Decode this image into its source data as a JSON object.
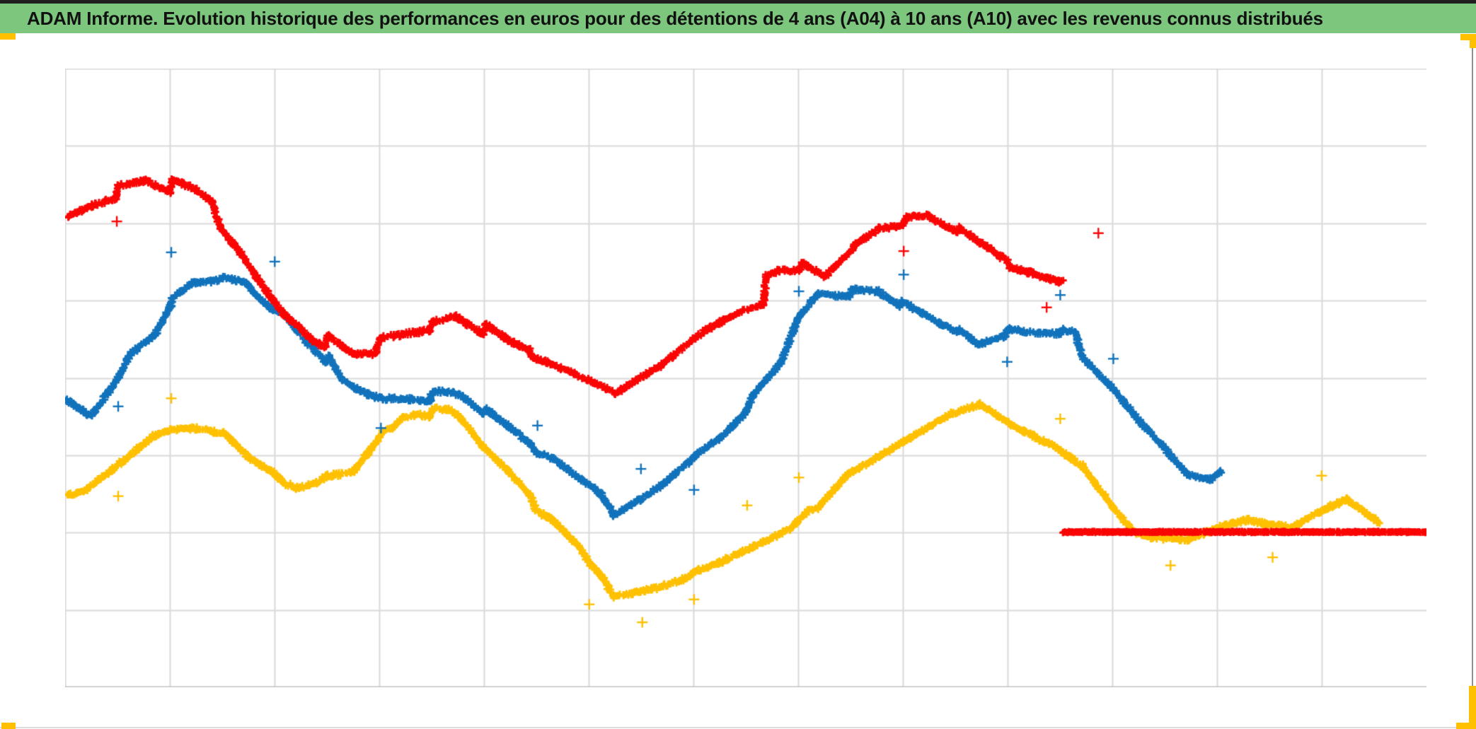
{
  "header": {
    "title": "ADAM Informe. Evolution historique des performances en euros pour des détentions de 4 ans (A04) à 10 ans (A10) avec les revenus connus distribués",
    "bg": "#7DC67E",
    "text_color": "#111111"
  },
  "window": {
    "accent_color": "#FFC000",
    "right_edge_color": "#8f8f8f",
    "bottom_edge_color": "#dcdcdc"
  },
  "chart_data": {
    "type": "scatter",
    "title": "ADAM Informe. Evolution historique des performances en euros pour des détentions de 4 ans (A04) à 10 ans (A10) avec les revenus connus distribués",
    "xlabel": "",
    "ylabel": "",
    "axis_tick_labels_visible": false,
    "legend": "none",
    "coords": "x = percent of plot width (0-100, left to right); y = percent of plot height (0-100, bottom to top); chart shows no numeric axis labels",
    "plot": {
      "grid_columns": 13,
      "grid_rows": 8,
      "grid_color": "#dadada",
      "border_color": "#c6c6c6",
      "background": "#ffffff",
      "border_sides": [
        "left",
        "top",
        "bottom"
      ]
    },
    "marker": "plus",
    "series": [
      {
        "name": "yellow-series",
        "color": "#FFC000",
        "dense": false,
        "points": [
          [
            0.2,
            31.1
          ],
          [
            1.4,
            31.7
          ],
          [
            3.1,
            34.5
          ],
          [
            4.8,
            37.6
          ],
          [
            6.5,
            40.6
          ],
          [
            7.7,
            41.6
          ],
          [
            9.4,
            41.9
          ],
          [
            10.8,
            41.4
          ],
          [
            11.7,
            41.1
          ],
          [
            12.6,
            39.1
          ],
          [
            13.5,
            37.1
          ],
          [
            14.3,
            36.0
          ],
          [
            15.2,
            34.9
          ],
          [
            16.1,
            33.0
          ],
          [
            17.0,
            32.2
          ],
          [
            18.5,
            33.1
          ],
          [
            19.3,
            34.2
          ],
          [
            21.1,
            34.7
          ],
          [
            22.2,
            37.7
          ],
          [
            23.1,
            40.5
          ],
          [
            23.3,
            41.4
          ],
          [
            24.0,
            41.9
          ],
          [
            24.8,
            43.7
          ],
          [
            25.9,
            44.1
          ],
          [
            26.8,
            43.7
          ],
          [
            27.0,
            45.0
          ],
          [
            28.0,
            45.0
          ],
          [
            28.8,
            44.1
          ],
          [
            29.9,
            41.1
          ],
          [
            30.7,
            38.9
          ],
          [
            31.6,
            37.0
          ],
          [
            32.5,
            35.1
          ],
          [
            33.3,
            33.1
          ],
          [
            34.2,
            30.9
          ],
          [
            34.6,
            28.6
          ],
          [
            35.8,
            27.1
          ],
          [
            36.8,
            24.8
          ],
          [
            37.7,
            22.9
          ],
          [
            38.5,
            20.2
          ],
          [
            39.4,
            17.9
          ],
          [
            40.3,
            14.7
          ],
          [
            42.0,
            15.3
          ],
          [
            43.7,
            16.2
          ],
          [
            45.5,
            17.6
          ],
          [
            46.5,
            18.9
          ],
          [
            48.1,
            20.2
          ],
          [
            49.8,
            21.9
          ],
          [
            51.5,
            23.7
          ],
          [
            53.3,
            25.7
          ],
          [
            54.6,
            28.5
          ],
          [
            55.3,
            29.0
          ],
          [
            57.4,
            34.3
          ],
          [
            59.5,
            36.9
          ],
          [
            61.6,
            39.7
          ],
          [
            63.7,
            42.4
          ],
          [
            65.1,
            44.2
          ],
          [
            67.2,
            45.7
          ],
          [
            69.9,
            41.9
          ],
          [
            72.7,
            38.9
          ],
          [
            74.7,
            35.8
          ],
          [
            77.0,
            29.0
          ],
          [
            78.5,
            25.1
          ],
          [
            79.9,
            24.2
          ],
          [
            82.5,
            23.9
          ],
          [
            83.6,
            24.8
          ],
          [
            84.5,
            25.6
          ],
          [
            85.7,
            26.5
          ],
          [
            86.9,
            27.0
          ],
          [
            88.3,
            26.4
          ],
          [
            90.2,
            25.9
          ],
          [
            92.3,
            28.5
          ],
          [
            94.1,
            30.4
          ],
          [
            96.1,
            27.3
          ],
          [
            96.5,
            26.6
          ]
        ]
      },
      {
        "name": "blue-series",
        "color": "#1273BC",
        "dense": false,
        "points": [
          [
            0.1,
            46.5
          ],
          [
            0.9,
            45.3
          ],
          [
            1.9,
            43.8
          ],
          [
            3.8,
            49.6
          ],
          [
            4.1,
            50.9
          ],
          [
            4.8,
            53.9
          ],
          [
            6.6,
            57.0
          ],
          [
            7.8,
            61.9
          ],
          [
            7.9,
            63.0
          ],
          [
            9.4,
            65.4
          ],
          [
            10.9,
            65.6
          ],
          [
            11.6,
            66.2
          ],
          [
            13.3,
            65.4
          ],
          [
            14.0,
            63.4
          ],
          [
            15.2,
            61.1
          ],
          [
            16.0,
            60.5
          ],
          [
            17.7,
            56.0
          ],
          [
            19.2,
            52.5
          ],
          [
            19.4,
            53.4
          ],
          [
            20.3,
            49.9
          ],
          [
            21.2,
            48.5
          ],
          [
            22.3,
            47.3
          ],
          [
            23.3,
            46.7
          ],
          [
            25.4,
            46.5
          ],
          [
            26.8,
            46.2
          ],
          [
            27.0,
            48.0
          ],
          [
            28.9,
            47.4
          ],
          [
            29.5,
            46.5
          ],
          [
            30.7,
            44.2
          ],
          [
            30.9,
            45.0
          ],
          [
            32.5,
            42.3
          ],
          [
            34.2,
            39.3
          ],
          [
            34.6,
            37.9
          ],
          [
            35.8,
            37.0
          ],
          [
            37.7,
            33.9
          ],
          [
            38.5,
            32.8
          ],
          [
            39.4,
            31.1
          ],
          [
            40.3,
            27.9
          ],
          [
            42.2,
            30.3
          ],
          [
            43.9,
            32.8
          ],
          [
            46.2,
            37.1
          ],
          [
            46.4,
            37.8
          ],
          [
            48.1,
            40.2
          ],
          [
            50.0,
            44.5
          ],
          [
            50.5,
            47.1
          ],
          [
            52.6,
            52.6
          ],
          [
            53.8,
            59.4
          ],
          [
            54.0,
            60.1
          ],
          [
            55.3,
            63.7
          ],
          [
            57.6,
            63.1
          ],
          [
            57.8,
            64.3
          ],
          [
            59.7,
            64.0
          ],
          [
            61.3,
            61.7
          ],
          [
            61.5,
            62.3
          ],
          [
            64.5,
            58.5
          ],
          [
            65.5,
            57.4
          ],
          [
            65.7,
            57.8
          ],
          [
            67.1,
            55.4
          ],
          [
            69.0,
            56.7
          ],
          [
            69.3,
            58.1
          ],
          [
            70.4,
            57.4
          ],
          [
            73.0,
            57.1
          ],
          [
            73.3,
            57.8
          ],
          [
            74.2,
            57.4
          ],
          [
            74.7,
            53.4
          ],
          [
            77.0,
            48.2
          ],
          [
            79.1,
            42.5
          ],
          [
            80.8,
            38.7
          ],
          [
            81.1,
            37.7
          ],
          [
            82.5,
            34.3
          ],
          [
            84.1,
            33.6
          ],
          [
            84.9,
            34.9
          ]
        ]
      },
      {
        "name": "red-series",
        "color": "#FB0505",
        "dense": false,
        "points": [
          [
            0.2,
            76.1
          ],
          [
            2.0,
            77.9
          ],
          [
            3.7,
            79.0
          ],
          [
            3.9,
            81.1
          ],
          [
            5.9,
            81.9
          ],
          [
            7.7,
            80.1
          ],
          [
            7.9,
            82.1
          ],
          [
            9.6,
            80.5
          ],
          [
            10.8,
            78.5
          ],
          [
            11.4,
            74.3
          ],
          [
            12.9,
            70.2
          ],
          [
            14.0,
            66.5
          ],
          [
            15.1,
            63.1
          ],
          [
            16.1,
            60.2
          ],
          [
            17.2,
            58.2
          ],
          [
            18.2,
            56.0
          ],
          [
            19.1,
            54.9
          ],
          [
            19.3,
            56.9
          ],
          [
            20.5,
            54.9
          ],
          [
            21.2,
            53.9
          ],
          [
            22.8,
            53.9
          ],
          [
            22.9,
            54.9
          ],
          [
            23.2,
            56.5
          ],
          [
            26.8,
            57.7
          ],
          [
            27.0,
            59.1
          ],
          [
            28.7,
            59.9
          ],
          [
            30.7,
            57.1
          ],
          [
            30.9,
            58.7
          ],
          [
            32.6,
            56.0
          ],
          [
            34.1,
            54.5
          ],
          [
            34.3,
            53.4
          ],
          [
            35.8,
            52.2
          ],
          [
            37.4,
            50.7
          ],
          [
            39.4,
            48.7
          ],
          [
            40.4,
            47.5
          ],
          [
            43.6,
            51.8
          ],
          [
            47.1,
            57.8
          ],
          [
            49.8,
            60.9
          ],
          [
            51.3,
            61.9
          ],
          [
            51.5,
            66.5
          ],
          [
            52.4,
            67.3
          ],
          [
            54.0,
            67.5
          ],
          [
            54.1,
            68.6
          ],
          [
            55.8,
            66.4
          ],
          [
            57.9,
            70.9
          ],
          [
            58.0,
            71.5
          ],
          [
            59.8,
            74.2
          ],
          [
            61.5,
            74.6
          ],
          [
            61.8,
            76.0
          ],
          [
            63.4,
            76.2
          ],
          [
            65.5,
            73.6
          ],
          [
            65.7,
            74.2
          ],
          [
            69.2,
            68.9
          ],
          [
            69.4,
            67.8
          ],
          [
            70.6,
            67.2
          ],
          [
            73.0,
            65.5
          ],
          [
            73.3,
            65.7
          ]
        ]
      },
      {
        "name": "red-flat-zero-line",
        "color": "#FB0505",
        "dense": true,
        "points": [
          [
            73.3,
            25.1
          ],
          [
            100.0,
            25.1
          ]
        ]
      }
    ],
    "outliers": [
      {
        "color": "#FB0505",
        "x": 3.8,
        "y": 75.3
      },
      {
        "color": "#FB0505",
        "x": 61.6,
        "y": 70.5
      },
      {
        "color": "#FB0505",
        "x": 72.1,
        "y": 61.4
      },
      {
        "color": "#FB0505",
        "x": 75.9,
        "y": 73.4
      },
      {
        "color": "#1273BC",
        "x": 3.9,
        "y": 45.4
      },
      {
        "color": "#1273BC",
        "x": 7.8,
        "y": 70.3
      },
      {
        "color": "#1273BC",
        "x": 15.4,
        "y": 68.8
      },
      {
        "color": "#1273BC",
        "x": 23.2,
        "y": 41.9
      },
      {
        "color": "#1273BC",
        "x": 34.7,
        "y": 42.3
      },
      {
        "color": "#1273BC",
        "x": 42.3,
        "y": 35.3
      },
      {
        "color": "#1273BC",
        "x": 46.2,
        "y": 31.9
      },
      {
        "color": "#1273BC",
        "x": 53.9,
        "y": 64.0
      },
      {
        "color": "#1273BC",
        "x": 61.6,
        "y": 66.7
      },
      {
        "color": "#1273BC",
        "x": 69.2,
        "y": 52.6
      },
      {
        "color": "#1273BC",
        "x": 73.1,
        "y": 63.4
      },
      {
        "color": "#1273BC",
        "x": 77.0,
        "y": 53.1
      },
      {
        "color": "#FFC000",
        "x": 3.9,
        "y": 30.9
      },
      {
        "color": "#FFC000",
        "x": 7.8,
        "y": 46.7
      },
      {
        "color": "#FFC000",
        "x": 38.5,
        "y": 13.4
      },
      {
        "color": "#FFC000",
        "x": 42.4,
        "y": 10.5
      },
      {
        "color": "#FFC000",
        "x": 46.2,
        "y": 14.2
      },
      {
        "color": "#FFC000",
        "x": 50.1,
        "y": 29.4
      },
      {
        "color": "#FFC000",
        "x": 53.9,
        "y": 33.9
      },
      {
        "color": "#FFC000",
        "x": 73.1,
        "y": 43.4
      },
      {
        "color": "#FFC000",
        "x": 81.2,
        "y": 19.7
      },
      {
        "color": "#FFC000",
        "x": 88.7,
        "y": 21.0
      },
      {
        "color": "#FFC000",
        "x": 92.3,
        "y": 34.2
      }
    ]
  }
}
